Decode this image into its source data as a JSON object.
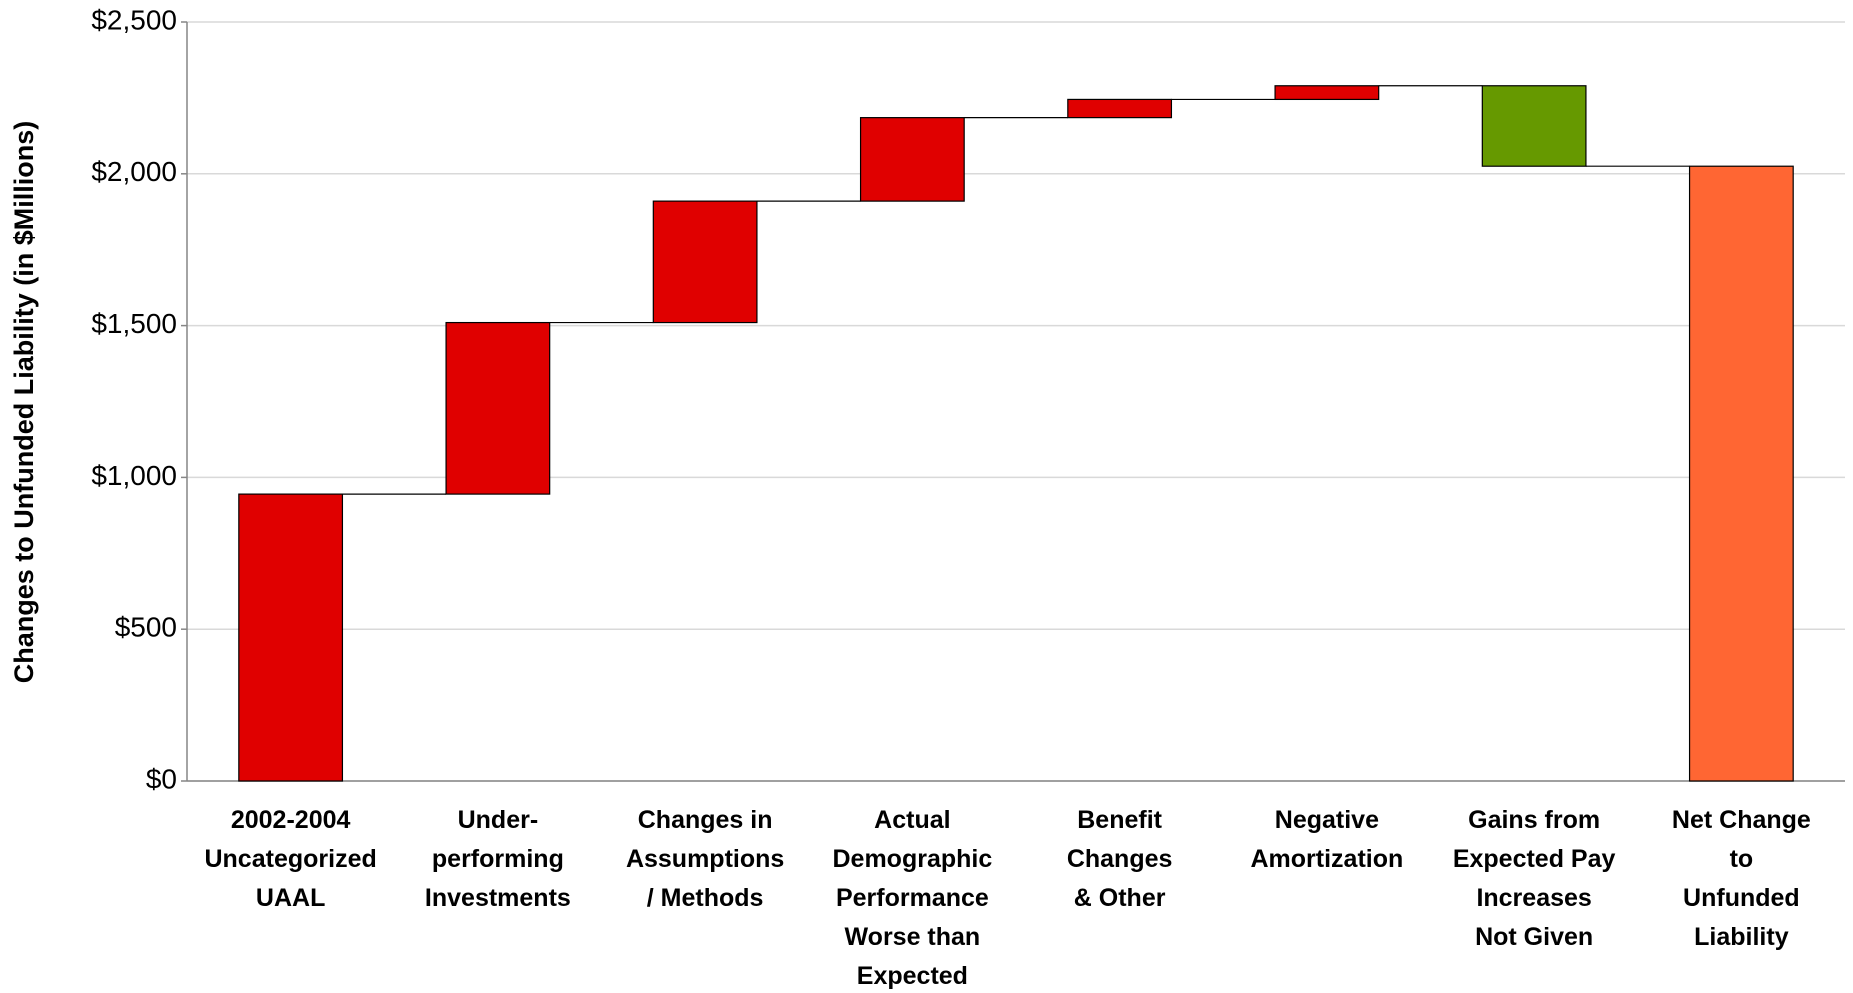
{
  "chart_data": {
    "type": "waterfall",
    "y_label": "Changes to Unfunded Liability (in $Millions)",
    "categories": [
      "2002-2004\nUncategorized\nUAAL",
      "Under-\nperforming\nInvestments",
      "Changes in\nAssumptions\n/ Methods",
      "Actual\nDemographic\nPerformance\nWorse than\nExpected",
      "Benefit\nChanges\n& Other",
      "Negative\nAmortization",
      "Gains from\nExpected Pay\nIncreases\nNot Given",
      "Net Change\nto\nUnfunded\nLiability"
    ],
    "values": [
      945,
      565,
      400,
      275,
      60,
      45,
      -265,
      2025
    ],
    "colors": [
      "#e00000",
      "#e00000",
      "#e00000",
      "#e00000",
      "#e00000",
      "#e00000",
      "#669900",
      "#ff6633"
    ],
    "total_last": true,
    "ylim": [
      0,
      2500
    ],
    "yticks": [
      {
        "value": 0,
        "label": "$0"
      },
      {
        "value": 500,
        "label": "$500"
      },
      {
        "value": 1000,
        "label": "$1,000"
      },
      {
        "value": 1500,
        "label": "$1,500"
      },
      {
        "value": 2000,
        "label": "$2,000"
      },
      {
        "value": 2500,
        "label": "$2,500"
      }
    ],
    "grid": true
  }
}
